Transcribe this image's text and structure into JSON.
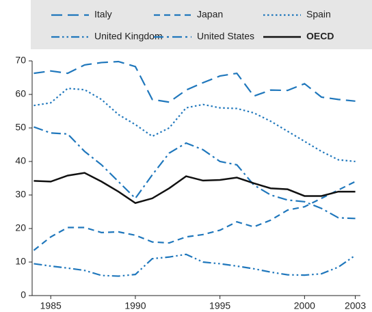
{
  "chart_data": {
    "type": "line",
    "x": [
      1984,
      1985,
      1986,
      1987,
      1988,
      1989,
      1990,
      1991,
      1992,
      1993,
      1994,
      1995,
      1996,
      1997,
      1998,
      1999,
      2000,
      2001,
      2002,
      2003
    ],
    "series": [
      {
        "name": "Italy",
        "color": "#1f77bc",
        "style": "long-dash",
        "values": [
          66.3,
          67,
          66.3,
          68.8,
          69.5,
          69.8,
          68.3,
          58.5,
          57.7,
          61.3,
          63.5,
          65.5,
          66.3,
          59.5,
          61.3,
          61.2,
          63.2,
          59.2,
          58.5,
          58.0
        ]
      },
      {
        "name": "Japan",
        "color": "#1f77bc",
        "style": "dash",
        "values": [
          13.5,
          17.5,
          20.3,
          20.3,
          18.8,
          19,
          18,
          16,
          15.7,
          17.5,
          18.2,
          19.5,
          22,
          20.5,
          22.5,
          25.5,
          26.5,
          29,
          31.5,
          34
        ]
      },
      {
        "name": "Spain",
        "color": "#1f77bc",
        "style": "dot",
        "values": [
          56.7,
          57.5,
          61.8,
          61.4,
          58.5,
          54,
          51,
          47.5,
          50,
          56,
          57,
          56,
          55.8,
          54.5,
          52,
          49,
          46,
          43,
          40.5,
          40
        ]
      },
      {
        "name": "United Kingdom",
        "color": "#1f77bc",
        "style": "dash-dot-dot",
        "values": [
          9.5,
          8.8,
          8.2,
          7.5,
          6,
          5.8,
          6.3,
          11,
          11.5,
          12.3,
          10,
          9.5,
          8.8,
          8,
          7,
          6.2,
          6.1,
          6.5,
          8.5,
          12
        ]
      },
      {
        "name": "United States",
        "color": "#1f77bc",
        "style": "dash-dot",
        "values": [
          50.3,
          48.5,
          48.2,
          43,
          39,
          34,
          29,
          36,
          42.5,
          45.5,
          43.5,
          40,
          39,
          33,
          30,
          28.5,
          28,
          26,
          23.2,
          23
        ]
      },
      {
        "name": "OECD",
        "color": "#111111",
        "style": "solid",
        "bold": true,
        "values": [
          34.2,
          34,
          35.8,
          36.6,
          34,
          31,
          27.6,
          29,
          32,
          35.6,
          34.3,
          34.5,
          35.2,
          33.5,
          32,
          31.7,
          29.7,
          29.7,
          31,
          31
        ]
      }
    ],
    "xlim": [
      1983.9,
      2003.3
    ],
    "xticks": [
      1985,
      1990,
      1995,
      2000,
      2003
    ],
    "ylim": [
      0,
      70
    ],
    "yticks": [
      0,
      10,
      20,
      30,
      40,
      50,
      60,
      70
    ]
  }
}
